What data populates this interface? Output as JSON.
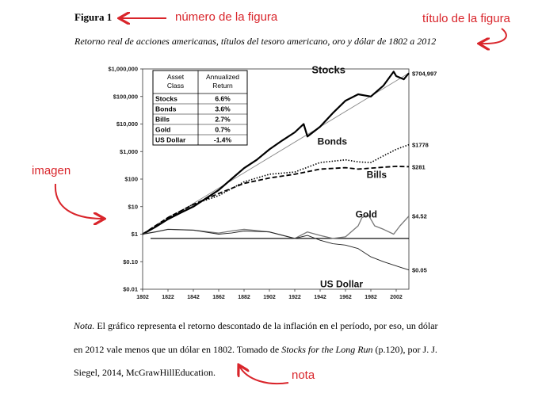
{
  "document": {
    "figure_label": "Figura 1",
    "figure_title": "Retorno real de acciones americanas, títulos del tesoro americano, oro y dólar de 1802 a 2012",
    "note": {
      "prefix": "Nota.",
      "line1_rest": " El gráfico representa el retorno descontado de la inflación en el período, por eso, un dólar",
      "line2_a": "en 2012 vale menos que un dólar en 1802. Tomado de ",
      "line2_book": "Stocks for the Long Run",
      "line2_b": " (p.120), por J. J.",
      "line3": "Siegel, 2014, McGrawHillEducation."
    }
  },
  "annotations": {
    "figure_number": "número de la figura",
    "figure_title": "título de la figura",
    "image": "imagen",
    "note": "nota"
  },
  "colors": {
    "annotation": "#d9252b",
    "text": "#000000"
  },
  "chart_data": {
    "type": "line",
    "yscale": "log",
    "xlim": [
      1802,
      2012
    ],
    "ylim": [
      0.01,
      1000000
    ],
    "x_ticks": [
      1802,
      1822,
      1842,
      1862,
      1882,
      1902,
      1922,
      1942,
      1962,
      1982,
      2002
    ],
    "y_ticks": [
      {
        "value": 1000000,
        "label": "$1,000,000"
      },
      {
        "value": 100000,
        "label": "$100,000"
      },
      {
        "value": 10000,
        "label": "$10,000"
      },
      {
        "value": 1000,
        "label": "$1,000"
      },
      {
        "value": 100,
        "label": "$100"
      },
      {
        "value": 10,
        "label": "$10"
      },
      {
        "value": 1,
        "label": "$1"
      },
      {
        "value": 0.1,
        "label": "$0.10"
      },
      {
        "value": 0.01,
        "label": "$0.01"
      }
    ],
    "table": {
      "headers": [
        "Asset Class",
        "Annualized Return"
      ],
      "rows": [
        [
          "Stocks",
          "6.6%"
        ],
        [
          "Bonds",
          "3.6%"
        ],
        [
          "Bills",
          "2.7%"
        ],
        [
          "Gold",
          "0.7%"
        ],
        [
          "US Dollar",
          "-1.4%"
        ]
      ]
    },
    "series": [
      {
        "name": "Stocks",
        "end_label": "$704,997",
        "x": [
          1802,
          1812,
          1822,
          1832,
          1842,
          1852,
          1862,
          1872,
          1882,
          1892,
          1902,
          1912,
          1922,
          1929,
          1932,
          1942,
          1952,
          1962,
          1972,
          1982,
          1992,
          2000,
          2002,
          2008,
          2012
        ],
        "values": [
          1,
          1.8,
          3.5,
          6,
          10,
          20,
          40,
          100,
          250,
          500,
          1200,
          2500,
          5000,
          10000,
          3500,
          8000,
          25000,
          70000,
          120000,
          100000,
          250000,
          800000,
          550000,
          420000,
          704997
        ],
        "style": "solid-thick"
      },
      {
        "name": "Bonds",
        "end_label": "$1778",
        "x": [
          1802,
          1822,
          1842,
          1862,
          1882,
          1902,
          1922,
          1942,
          1962,
          1972,
          1982,
          1992,
          2002,
          2012
        ],
        "values": [
          1,
          4,
          12,
          25,
          80,
          150,
          180,
          400,
          500,
          420,
          400,
          700,
          1200,
          1778
        ],
        "style": "dotted"
      },
      {
        "name": "Bills",
        "end_label": "$281",
        "x": [
          1802,
          1822,
          1842,
          1862,
          1882,
          1902,
          1922,
          1942,
          1962,
          1972,
          1982,
          1992,
          2002,
          2012
        ],
        "values": [
          1,
          4,
          12,
          30,
          70,
          110,
          150,
          230,
          260,
          230,
          250,
          270,
          290,
          281
        ],
        "style": "dashed"
      },
      {
        "name": "Gold",
        "end_label": "$4.52",
        "x": [
          1802,
          1812,
          1822,
          1842,
          1862,
          1872,
          1882,
          1902,
          1922,
          1932,
          1942,
          1952,
          1962,
          1972,
          1975,
          1980,
          1985,
          1992,
          2000,
          2005,
          2012
        ],
        "values": [
          1,
          1.2,
          1.5,
          1.4,
          1.1,
          1.3,
          1.5,
          1.2,
          0.7,
          1.2,
          0.9,
          0.7,
          0.8,
          2,
          4,
          5,
          2,
          1.5,
          1,
          2,
          4.52
        ],
        "style": "gray"
      },
      {
        "name": "US Dollar",
        "end_label": "$0.05",
        "x": [
          1802,
          1812,
          1822,
          1842,
          1862,
          1872,
          1882,
          1902,
          1922,
          1932,
          1942,
          1952,
          1962,
          1972,
          1982,
          1992,
          2002,
          2012
        ],
        "values": [
          1,
          1.2,
          1.5,
          1.4,
          1,
          1.1,
          1.3,
          1.2,
          0.7,
          0.9,
          0.6,
          0.45,
          0.4,
          0.3,
          0.15,
          0.1,
          0.07,
          0.05
        ],
        "style": "thin"
      }
    ],
    "reference_line": {
      "name": "trend",
      "x": [
        1802,
        2012
      ],
      "values": [
        1,
        704997
      ]
    },
    "baseline": {
      "value": 0.7
    }
  }
}
